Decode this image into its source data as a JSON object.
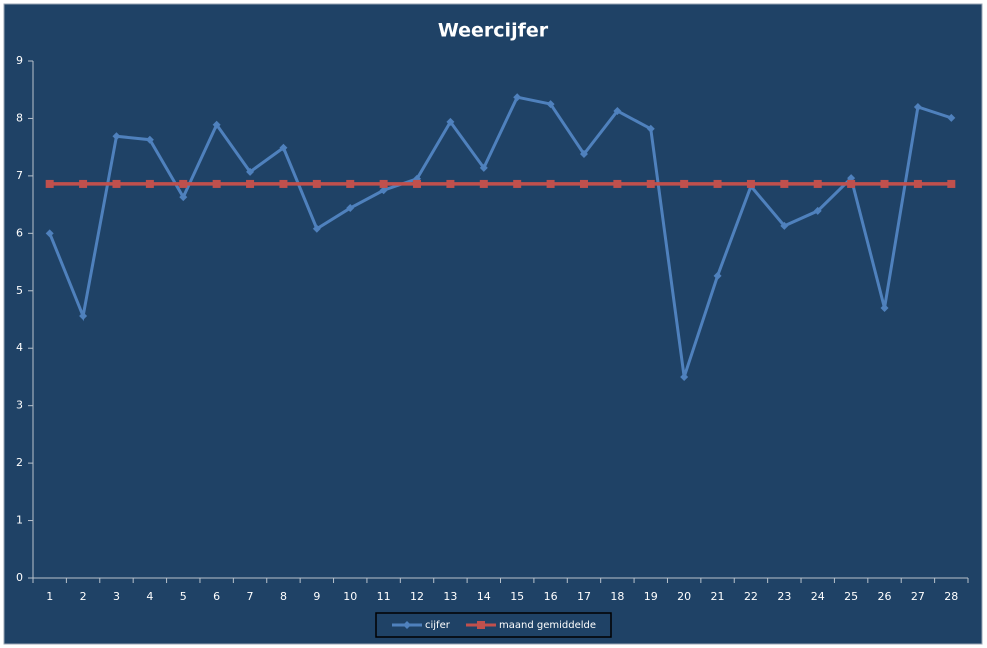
{
  "chart_data": {
    "type": "line",
    "title": "Weercijfer",
    "categories": [
      "1",
      "2",
      "3",
      "4",
      "5",
      "6",
      "7",
      "8",
      "9",
      "10",
      "11",
      "12",
      "13",
      "14",
      "15",
      "16",
      "17",
      "18",
      "19",
      "20",
      "21",
      "22",
      "23",
      "24",
      "25",
      "26",
      "27",
      "28"
    ],
    "series": [
      {
        "name": "cijfer",
        "color": "#4f81bd",
        "marker": "diamond",
        "values": [
          6.0,
          4.56,
          7.69,
          7.63,
          6.63,
          7.89,
          7.07,
          7.49,
          6.08,
          6.44,
          6.75,
          6.95,
          7.94,
          7.14,
          8.37,
          8.25,
          7.38,
          8.13,
          7.82,
          3.5,
          5.26,
          6.82,
          6.13,
          6.39,
          6.96,
          4.7,
          8.2,
          8.01
        ]
      },
      {
        "name": "maand gemiddelde",
        "color": "#c0504d",
        "marker": "square",
        "values": [
          6.86,
          6.86,
          6.86,
          6.86,
          6.86,
          6.86,
          6.86,
          6.86,
          6.86,
          6.86,
          6.86,
          6.86,
          6.86,
          6.86,
          6.86,
          6.86,
          6.86,
          6.86,
          6.86,
          6.86,
          6.86,
          6.86,
          6.86,
          6.86,
          6.86,
          6.86,
          6.86,
          6.86
        ]
      }
    ],
    "ylim": [
      0,
      9
    ],
    "yticks": [
      0,
      1,
      2,
      3,
      4,
      5,
      6,
      7,
      8,
      9
    ],
    "grid": false,
    "legend": "bottom"
  }
}
